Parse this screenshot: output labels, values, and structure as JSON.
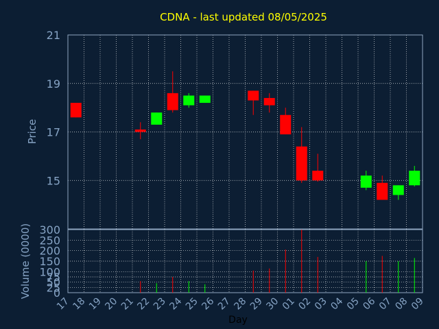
{
  "chart_data": {
    "type": "candlestick",
    "title": "CDNA - last updated 08/05/2025",
    "xlabel": "Day",
    "x_ticks": [
      "17",
      "18",
      "19",
      "20",
      "21",
      "22",
      "23",
      "24",
      "25",
      "26",
      "27",
      "28",
      "29",
      "30",
      "01",
      "02",
      "03",
      "04",
      "05",
      "06",
      "07",
      "08",
      "09"
    ],
    "price_panel": {
      "ylabel": "Price",
      "ylim": [
        13,
        21
      ],
      "y_ticks": [
        15,
        17,
        19,
        21
      ],
      "candles": [
        {
          "day": "17",
          "open": 18.2,
          "high": 18.2,
          "low": 17.6,
          "close": 17.6
        },
        {
          "day": "21",
          "open": 17.1,
          "high": 17.4,
          "low": 16.7,
          "close": 17.0
        },
        {
          "day": "22",
          "open": 17.3,
          "high": 17.8,
          "low": 17.3,
          "close": 17.8
        },
        {
          "day": "23",
          "open": 18.6,
          "high": 19.5,
          "low": 17.8,
          "close": 17.9
        },
        {
          "day": "24",
          "open": 18.1,
          "high": 18.6,
          "low": 18.0,
          "close": 18.5
        },
        {
          "day": "25",
          "open": 18.2,
          "high": 18.5,
          "low": 18.2,
          "close": 18.5
        },
        {
          "day": "28",
          "open": 18.7,
          "high": 18.7,
          "low": 17.7,
          "close": 18.3
        },
        {
          "day": "29",
          "open": 18.4,
          "high": 18.6,
          "low": 17.8,
          "close": 18.1
        },
        {
          "day": "30",
          "open": 17.7,
          "high": 18.0,
          "low": 16.9,
          "close": 16.9
        },
        {
          "day": "01",
          "open": 16.4,
          "high": 17.2,
          "low": 14.9,
          "close": 15.0
        },
        {
          "day": "02",
          "open": 15.4,
          "high": 16.1,
          "low": 14.95,
          "close": 15.0
        },
        {
          "day": "05",
          "open": 14.7,
          "high": 15.4,
          "low": 14.6,
          "close": 15.2
        },
        {
          "day": "06",
          "open": 14.9,
          "high": 15.2,
          "low": 14.2,
          "close": 14.2
        },
        {
          "day": "07",
          "open": 14.4,
          "high": 14.8,
          "low": 14.2,
          "close": 14.8
        },
        {
          "day": "08",
          "open": 14.8,
          "high": 15.6,
          "low": 14.75,
          "close": 15.4
        }
      ]
    },
    "volume_panel": {
      "ylabel": "Volume (0000)",
      "ylim": [
        0,
        300
      ],
      "y_ticks": [
        0,
        25,
        50,
        75,
        100,
        150,
        200,
        250,
        300
      ],
      "bars": [
        {
          "day": "21",
          "value": 55,
          "color": "down"
        },
        {
          "day": "22",
          "value": 45,
          "color": "up"
        },
        {
          "day": "23",
          "value": 75,
          "color": "down"
        },
        {
          "day": "24",
          "value": 55,
          "color": "up"
        },
        {
          "day": "25",
          "value": 40,
          "color": "up"
        },
        {
          "day": "28",
          "value": 105,
          "color": "down"
        },
        {
          "day": "29",
          "value": 115,
          "color": "down"
        },
        {
          "day": "30",
          "value": 205,
          "color": "down"
        },
        {
          "day": "01",
          "value": 300,
          "color": "down"
        },
        {
          "day": "02",
          "value": 170,
          "color": "down"
        },
        {
          "day": "05",
          "value": 150,
          "color": "up"
        },
        {
          "day": "06",
          "value": 175,
          "color": "down"
        },
        {
          "day": "07",
          "value": 150,
          "color": "up"
        },
        {
          "day": "08",
          "value": 165,
          "color": "up"
        }
      ]
    },
    "colors": {
      "up": "#00ff00",
      "down": "#ff0000",
      "background": "#0c1e33",
      "axis_text": "#86a3c4",
      "title": "#ffff00"
    },
    "grid": true
  }
}
